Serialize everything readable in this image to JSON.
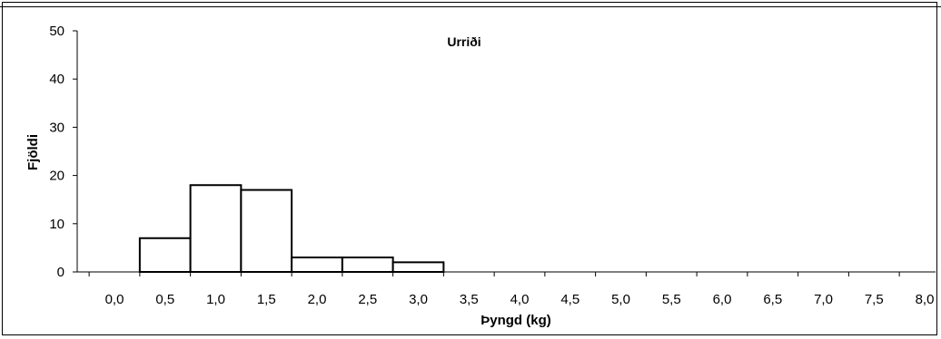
{
  "chart_data": {
    "type": "bar",
    "title": "Urriði",
    "xlabel": "Þyngd (kg)",
    "ylabel": "Fjöldi",
    "categories": [
      "0,0",
      "0,5",
      "1,0",
      "1,5",
      "2,0",
      "2,5",
      "3,0",
      "3,5",
      "4,0",
      "4,5",
      "5,0",
      "5,5",
      "6,0",
      "6,5",
      "7,0",
      "7,5",
      "8,0"
    ],
    "values": [
      0,
      7,
      18,
      17,
      3,
      3,
      2,
      0,
      0,
      0,
      0,
      0,
      0,
      0,
      0,
      0,
      0
    ],
    "ylim": [
      0,
      50
    ],
    "yticks": [
      "0",
      "10",
      "20",
      "30",
      "40",
      "50"
    ],
    "grid": false,
    "legend": "none",
    "bar_fill": "#ffffff",
    "bar_stroke": "#000000"
  }
}
